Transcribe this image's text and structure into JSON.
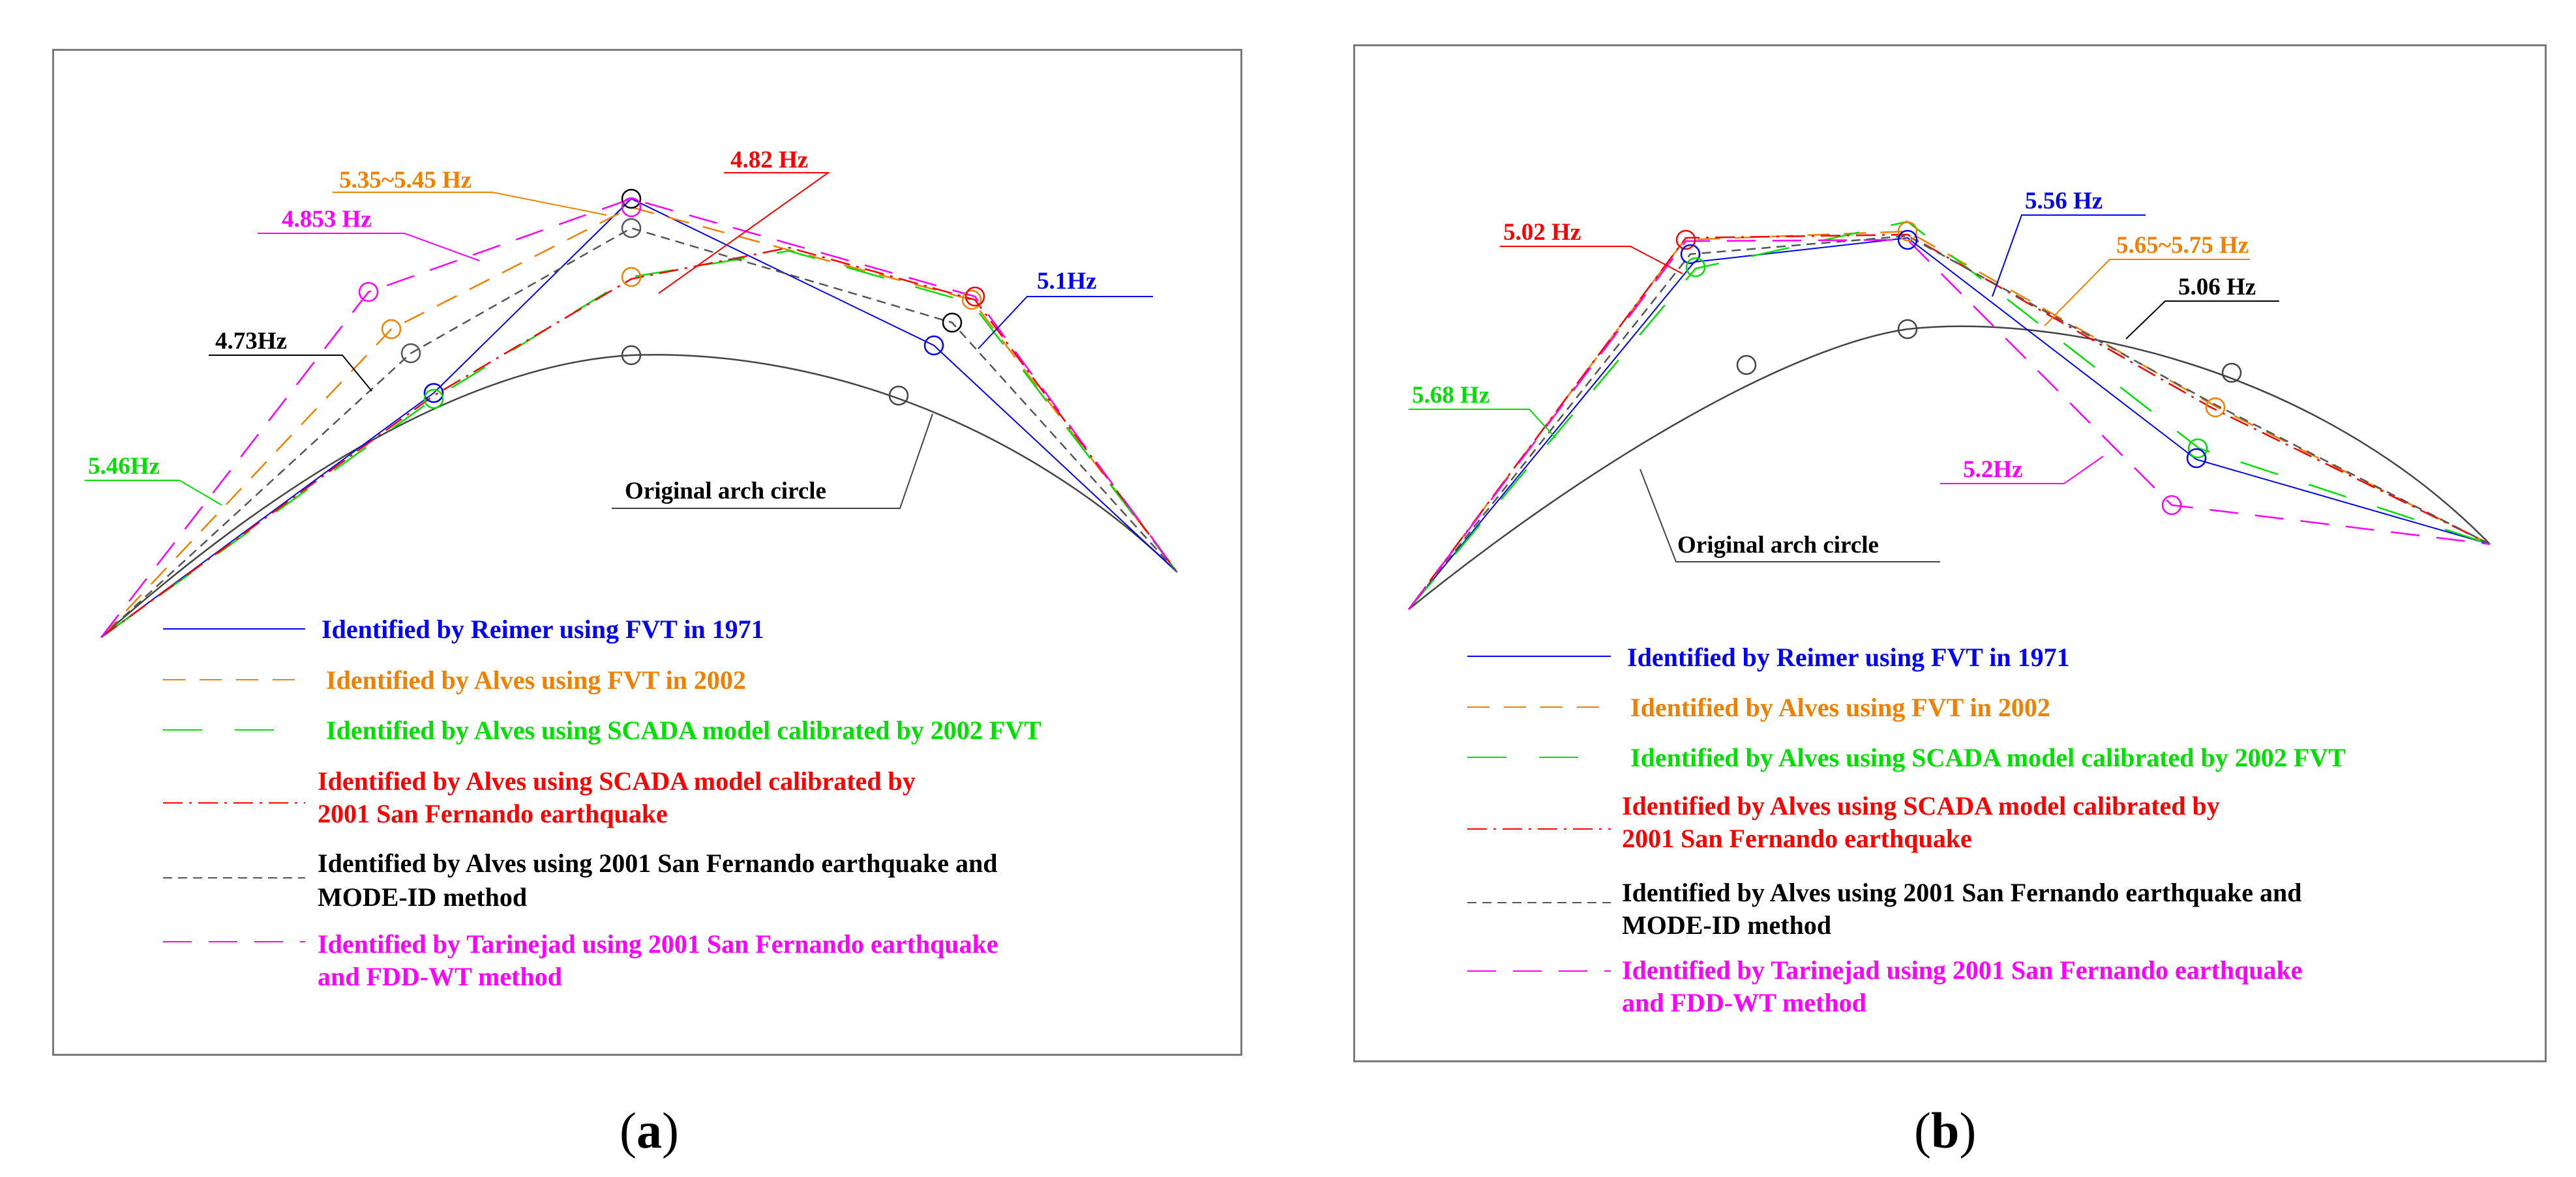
{
  "colors": {
    "reimer": "#0000ff",
    "alves_fvt": "#f08000",
    "alves_scada_fvt": "#00e000",
    "alves_scada_eq": "#ff0000",
    "alves_modeid": "#000000",
    "tarinejad": "#ff00ff",
    "arch": "#444444",
    "frame": "#7a7a7a"
  },
  "panels": [
    {
      "caption_letter": "a",
      "annotations": {
        "orange": "5.35~5.45 Hz",
        "red": "4.82 Hz",
        "magenta": "4.853 Hz",
        "blue": "5.1Hz",
        "black": "4.73Hz",
        "green": "5.46Hz",
        "arch": "Original arch circle"
      },
      "legend": [
        {
          "lines": [
            "Identified by Reimer using FVT in 1971"
          ],
          "color": "#0000ff",
          "dash": "solid"
        },
        {
          "lines": [
            "Identified by Alves using FVT in 2002"
          ],
          "color": "#f08000",
          "dash": "long"
        },
        {
          "lines": [
            "Identified by Alves using  SCADA model calibrated by 2002 FVT"
          ],
          "color": "#00e000",
          "dash": "sparse"
        },
        {
          "lines": [
            "Identified  by Alves using  SCADA model calibrated by",
            "2001 San Fernando earthquake"
          ],
          "color": "#ff0000",
          "dash": "dashdot"
        },
        {
          "lines": [
            "Identified  by Alves using 2001 San Fernando earthquake and",
            "MODE-ID method"
          ],
          "color": "#000000",
          "dash": "short"
        },
        {
          "lines": [
            "Identified by Tarinejad using 2001 San Fernando earthquake",
            "and FDD-WT method"
          ],
          "color": "#ff00ff",
          "dash": "long"
        }
      ]
    },
    {
      "caption_letter": "b",
      "annotations": {
        "red": "5.02 Hz",
        "blue": "5.56 Hz",
        "orange": "5.65~5.75 Hz",
        "black": "5.06 Hz",
        "green": "5.68 Hz",
        "magenta": "5.2Hz",
        "arch": "Original arch circle"
      },
      "legend": [
        {
          "lines": [
            "Identified by Reimer using FVT in 1971"
          ],
          "color": "#0000ff",
          "dash": "solid"
        },
        {
          "lines": [
            "Identified by Alves using FVT in 2002"
          ],
          "color": "#f08000",
          "dash": "long"
        },
        {
          "lines": [
            "Identified by Alves using SCADA model calibrated by 2002 FVT"
          ],
          "color": "#00e000",
          "dash": "sparse"
        },
        {
          "lines": [
            "Identified by Alves using SCADA model calibrated by",
            "2001 San Fernando earthquake"
          ],
          "color": "#ff0000",
          "dash": "dashdot"
        },
        {
          "lines": [
            "Identified by Alves using 2001 San Fernando earthquake and",
            "MODE-ID method"
          ],
          "color": "#000000",
          "dash": "short"
        },
        {
          "lines": [
            "Identified by Tarinejad using 2001 San Fernando earthquake",
            "and FDD-WT method"
          ],
          "color": "#ff00ff",
          "dash": "long"
        }
      ]
    }
  ]
}
